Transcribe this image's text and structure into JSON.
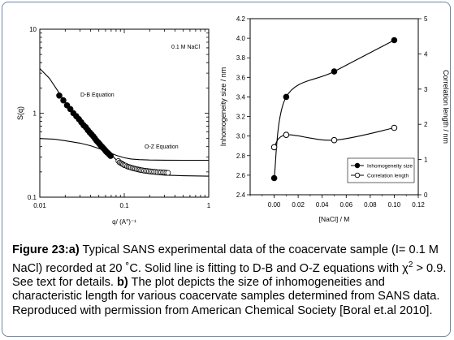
{
  "chart_data": [
    {
      "type": "scatter",
      "xscale": "log",
      "yscale": "log",
      "xlim": [
        0.01,
        1
      ],
      "ylim": [
        0.1,
        10
      ],
      "xlabel": "q/ (A°)⁻¹",
      "ylabel": "S(q)",
      "x_ticks": [
        "0.01",
        "0.1",
        "1"
      ],
      "y_ticks": [
        "0.1",
        "1",
        "10"
      ],
      "annotations": [
        "0.1 M NaCl",
        "D-B Equation",
        "O-Z Equation"
      ],
      "series": [
        {
          "marker": "filled-circle",
          "x": [
            0.017,
            0.019,
            0.021,
            0.023,
            0.025,
            0.027,
            0.029,
            0.031,
            0.033,
            0.035,
            0.037,
            0.039,
            0.041,
            0.043,
            0.045,
            0.047,
            0.049,
            0.051,
            0.053,
            0.055,
            0.057,
            0.059,
            0.061,
            0.063,
            0.065,
            0.067,
            0.069
          ],
          "y": [
            1.62,
            1.42,
            1.24,
            1.12,
            1.0,
            0.92,
            0.85,
            0.78,
            0.72,
            0.68,
            0.63,
            0.59,
            0.56,
            0.53,
            0.5,
            0.47,
            0.45,
            0.43,
            0.41,
            0.395,
            0.38,
            0.365,
            0.35,
            0.34,
            0.33,
            0.32,
            0.31
          ]
        },
        {
          "marker": "open-circle",
          "x": [
            0.085,
            0.088,
            0.091,
            0.094,
            0.097,
            0.1,
            0.104,
            0.108,
            0.112,
            0.116,
            0.12,
            0.125,
            0.13,
            0.135,
            0.14,
            0.146,
            0.152,
            0.158,
            0.165,
            0.172,
            0.18,
            0.188,
            0.196,
            0.205,
            0.215,
            0.225,
            0.236,
            0.248,
            0.26,
            0.273,
            0.287,
            0.3,
            0.315,
            0.33
          ],
          "y": [
            0.27,
            0.26,
            0.255,
            0.25,
            0.245,
            0.24,
            0.238,
            0.233,
            0.23,
            0.228,
            0.225,
            0.222,
            0.22,
            0.218,
            0.216,
            0.214,
            0.212,
            0.21,
            0.209,
            0.207,
            0.206,
            0.205,
            0.204,
            0.203,
            0.202,
            0.201,
            0.2,
            0.199,
            0.199,
            0.198,
            0.197,
            0.197,
            0.196,
            0.195
          ]
        }
      ],
      "fit_lines": [
        {
          "label": "D-B Equation",
          "x": [
            0.01,
            0.013,
            0.016,
            0.02,
            0.025,
            0.03,
            0.04,
            0.05,
            0.06,
            0.07,
            0.08,
            0.1,
            0.12,
            0.15,
            0.2,
            0.3,
            0.5,
            1
          ],
          "y": [
            3.4,
            2.6,
            1.9,
            1.35,
            1.0,
            0.8,
            0.56,
            0.44,
            0.37,
            0.32,
            0.28,
            0.24,
            0.215,
            0.2,
            0.19,
            0.183,
            0.18,
            0.178
          ]
        },
        {
          "label": "O-Z Equation",
          "x": [
            0.01,
            0.015,
            0.02,
            0.03,
            0.04,
            0.05,
            0.06,
            0.07,
            0.08,
            0.1,
            0.12,
            0.15,
            0.2,
            0.3,
            0.5,
            1
          ],
          "y": [
            0.5,
            0.49,
            0.47,
            0.44,
            0.41,
            0.38,
            0.355,
            0.335,
            0.315,
            0.295,
            0.285,
            0.28,
            0.277,
            0.276,
            0.275,
            0.275
          ]
        }
      ]
    },
    {
      "type": "line",
      "xlim": [
        -0.02,
        0.12
      ],
      "ylim": [
        2.4,
        4.2
      ],
      "y2lim": [
        0,
        5
      ],
      "xlabel": "[NaCl] / M",
      "ylabel": "Inhomogeneity size / nm",
      "y2label": "Correlation length / nm",
      "x_ticks": [
        "0.00",
        "0.02",
        "0.04",
        "0.06",
        "0.08",
        "0.10",
        "0.12"
      ],
      "y_ticks": [
        "2.4",
        "2.6",
        "2.8",
        "3.0",
        "3.2",
        "3.4",
        "3.6",
        "3.8",
        "4.0",
        "4.2"
      ],
      "y2_ticks": [
        "0",
        "1",
        "2",
        "3",
        "4",
        "5"
      ],
      "legend_position": "bottom-right",
      "series": [
        {
          "name": "Inhomogeneity size",
          "axis": "left",
          "marker": "filled-circle",
          "x": [
            0.0,
            0.01,
            0.05,
            0.1
          ],
          "y": [
            2.57,
            3.4,
            3.66,
            3.98
          ]
        },
        {
          "name": "Correlation length",
          "axis": "right",
          "marker": "open-circle",
          "x": [
            0.0,
            0.01,
            0.05,
            0.1
          ],
          "y": [
            1.35,
            1.7,
            1.55,
            1.9
          ]
        }
      ]
    }
  ],
  "caption": {
    "label_fig": "Figure 23:",
    "label_a": "a)",
    "text_a": " Typical SANS experimental data of the coacervate sample (I= 0.1 M NaCl) recorded at 20 ˚C.  Solid line is fitting to D-B and O-Z equations with χ",
    "chi_sup": "2",
    "text_a2": " > 0.9. See text for details. ",
    "label_b": "b)",
    "text_b": " The plot depicts the size of inhomogeneities and characteristic length   for various coacervate samples determined from SANS data. Reproduced with permission from American Chemical Society [Boral et.al 2010]."
  }
}
